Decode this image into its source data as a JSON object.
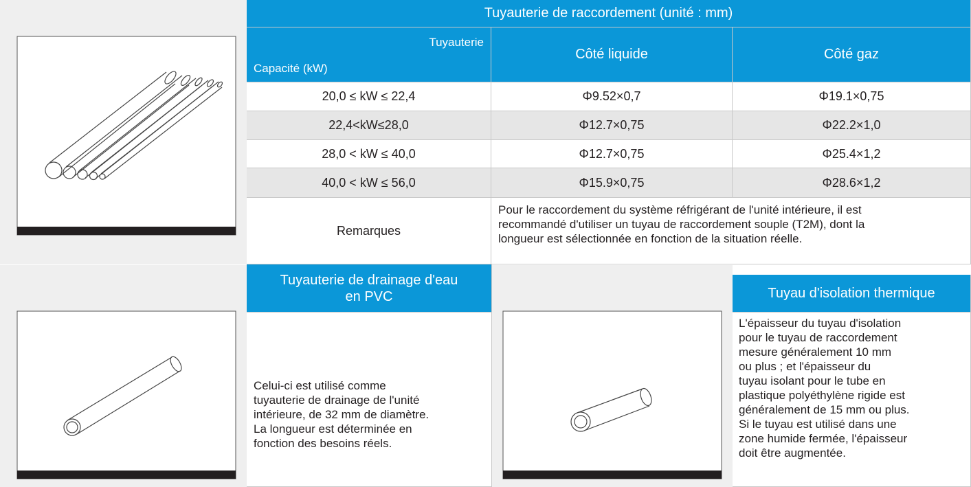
{
  "header": {
    "title": "Tuyauterie de raccordement (unité : mm)",
    "corner_top": "Tuyauterie",
    "corner_bottom": "Capacité (kW)",
    "columns": [
      "Côté liquide",
      "Côté gaz"
    ]
  },
  "rows": [
    [
      "20,0 ≤ kW ≤ 22,4",
      "Φ9.52×0,7",
      "Φ19.1×0,75"
    ],
    [
      "22,4<kW≤28,0",
      "Φ12.7×0,75",
      "Φ22.2×1,0"
    ],
    [
      "28,0 < kW ≤ 40,0",
      "Φ12.7×0,75",
      "Φ25.4×1,2"
    ],
    [
      "40,0 < kW ≤ 56,0",
      "Φ15.9×0,75",
      "Φ28.6×1,2"
    ]
  ],
  "remark": {
    "label": "Remarques",
    "lines": [
      "Pour le raccordement du système réfrigérant de l'unité intérieure, il est",
      "recommandé d'utiliser un tuyau de raccordement souple (T2M), dont la",
      "longueur est sélectionnée en fonction de la situation réelle."
    ]
  },
  "drainage": {
    "title_lines": [
      "Tuyauterie de drainage d'eau",
      "en PVC"
    ],
    "lines": [
      "Celui-ci est utilisé comme",
      "tuyauterie de drainage de l'unité",
      "intérieure, de 32 mm de diamètre.",
      "La longueur est déterminée en",
      "fonction des besoins réels."
    ]
  },
  "insulation": {
    "title": "Tuyau d'isolation thermique",
    "lines": [
      "L'épaisseur du tuyau d'isolation",
      "pour le tuyau de raccordement",
      "mesure généralement 10 mm",
      "ou plus ; et l'épaisseur du",
      "tuyau isolant pour le tube en",
      "plastique polyéthylène rigide est",
      "généralement de 15 mm ou plus.",
      "Si le tuyau est utilisé dans une",
      "zone humide fermée, l'épaisseur",
      "doit être augmentée."
    ]
  }
}
